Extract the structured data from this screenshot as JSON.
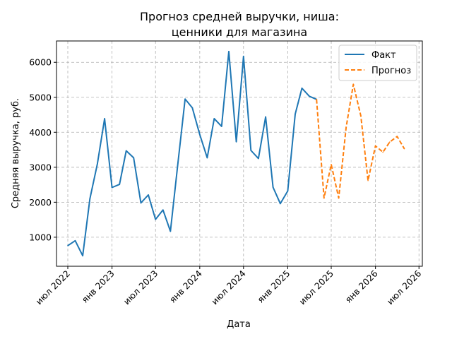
{
  "chart_data": {
    "type": "line",
    "title_lines": [
      "Прогноз средней выручки, ниша:",
      "ценники для магазина"
    ],
    "xlabel": "Дата",
    "ylabel": "Средняя выручка, руб.",
    "x_ticks": [
      {
        "date": "2022-07-01",
        "label": "июл 2022"
      },
      {
        "date": "2023-01-01",
        "label": "янв 2023"
      },
      {
        "date": "2023-07-01",
        "label": "июл 2023"
      },
      {
        "date": "2024-01-01",
        "label": "янв 2024"
      },
      {
        "date": "2024-07-01",
        "label": "июл 2024"
      },
      {
        "date": "2025-01-01",
        "label": "янв 2025"
      },
      {
        "date": "2025-07-01",
        "label": "июл 2025"
      },
      {
        "date": "2026-01-01",
        "label": "янв 2026"
      },
      {
        "date": "2026-07-01",
        "label": "июл 2026"
      }
    ],
    "y_ticks": [
      1000,
      2000,
      3000,
      4000,
      5000,
      6000
    ],
    "xlim": [
      "2022-05-15",
      "2026-07-15"
    ],
    "ylim": [
      170,
      6610
    ],
    "grid": true,
    "legend_position": "top-right",
    "series": [
      {
        "name": "Факт",
        "color": "#1f77b4",
        "style": "solid",
        "points": [
          [
            "2022-07-01",
            760
          ],
          [
            "2022-08-01",
            900
          ],
          [
            "2022-09-01",
            470
          ],
          [
            "2022-10-01",
            2100
          ],
          [
            "2022-11-01",
            3100
          ],
          [
            "2022-12-01",
            4390
          ],
          [
            "2023-01-01",
            2420
          ],
          [
            "2023-02-01",
            2510
          ],
          [
            "2023-03-01",
            3470
          ],
          [
            "2023-04-01",
            3270
          ],
          [
            "2023-05-01",
            1980
          ],
          [
            "2023-06-01",
            2210
          ],
          [
            "2023-07-01",
            1510
          ],
          [
            "2023-08-01",
            1780
          ],
          [
            "2023-09-01",
            1170
          ],
          [
            "2023-10-01",
            3040
          ],
          [
            "2023-11-01",
            4950
          ],
          [
            "2023-12-01",
            4700
          ],
          [
            "2024-01-01",
            3940
          ],
          [
            "2024-02-01",
            3270
          ],
          [
            "2024-03-01",
            4390
          ],
          [
            "2024-04-01",
            4170
          ],
          [
            "2024-05-01",
            6310
          ],
          [
            "2024-06-01",
            3730
          ],
          [
            "2024-07-01",
            6170
          ],
          [
            "2024-08-01",
            3480
          ],
          [
            "2024-09-01",
            3250
          ],
          [
            "2024-10-01",
            4440
          ],
          [
            "2024-11-01",
            2430
          ],
          [
            "2024-12-01",
            1960
          ],
          [
            "2025-01-01",
            2320
          ],
          [
            "2025-02-01",
            4520
          ],
          [
            "2025-03-01",
            5260
          ],
          [
            "2025-04-01",
            5030
          ],
          [
            "2025-05-01",
            4940
          ]
        ]
      },
      {
        "name": "Прогноз",
        "color": "#ff7f0e",
        "style": "dashed",
        "points": [
          [
            "2025-05-01",
            4940
          ],
          [
            "2025-06-01",
            2120
          ],
          [
            "2025-07-01",
            3080
          ],
          [
            "2025-08-01",
            2120
          ],
          [
            "2025-09-01",
            4140
          ],
          [
            "2025-10-01",
            5370
          ],
          [
            "2025-11-01",
            4470
          ],
          [
            "2025-12-01",
            2620
          ],
          [
            "2026-01-01",
            3610
          ],
          [
            "2026-02-01",
            3430
          ],
          [
            "2026-03-01",
            3720
          ],
          [
            "2026-04-01",
            3880
          ],
          [
            "2026-05-01",
            3530
          ]
        ]
      }
    ]
  }
}
